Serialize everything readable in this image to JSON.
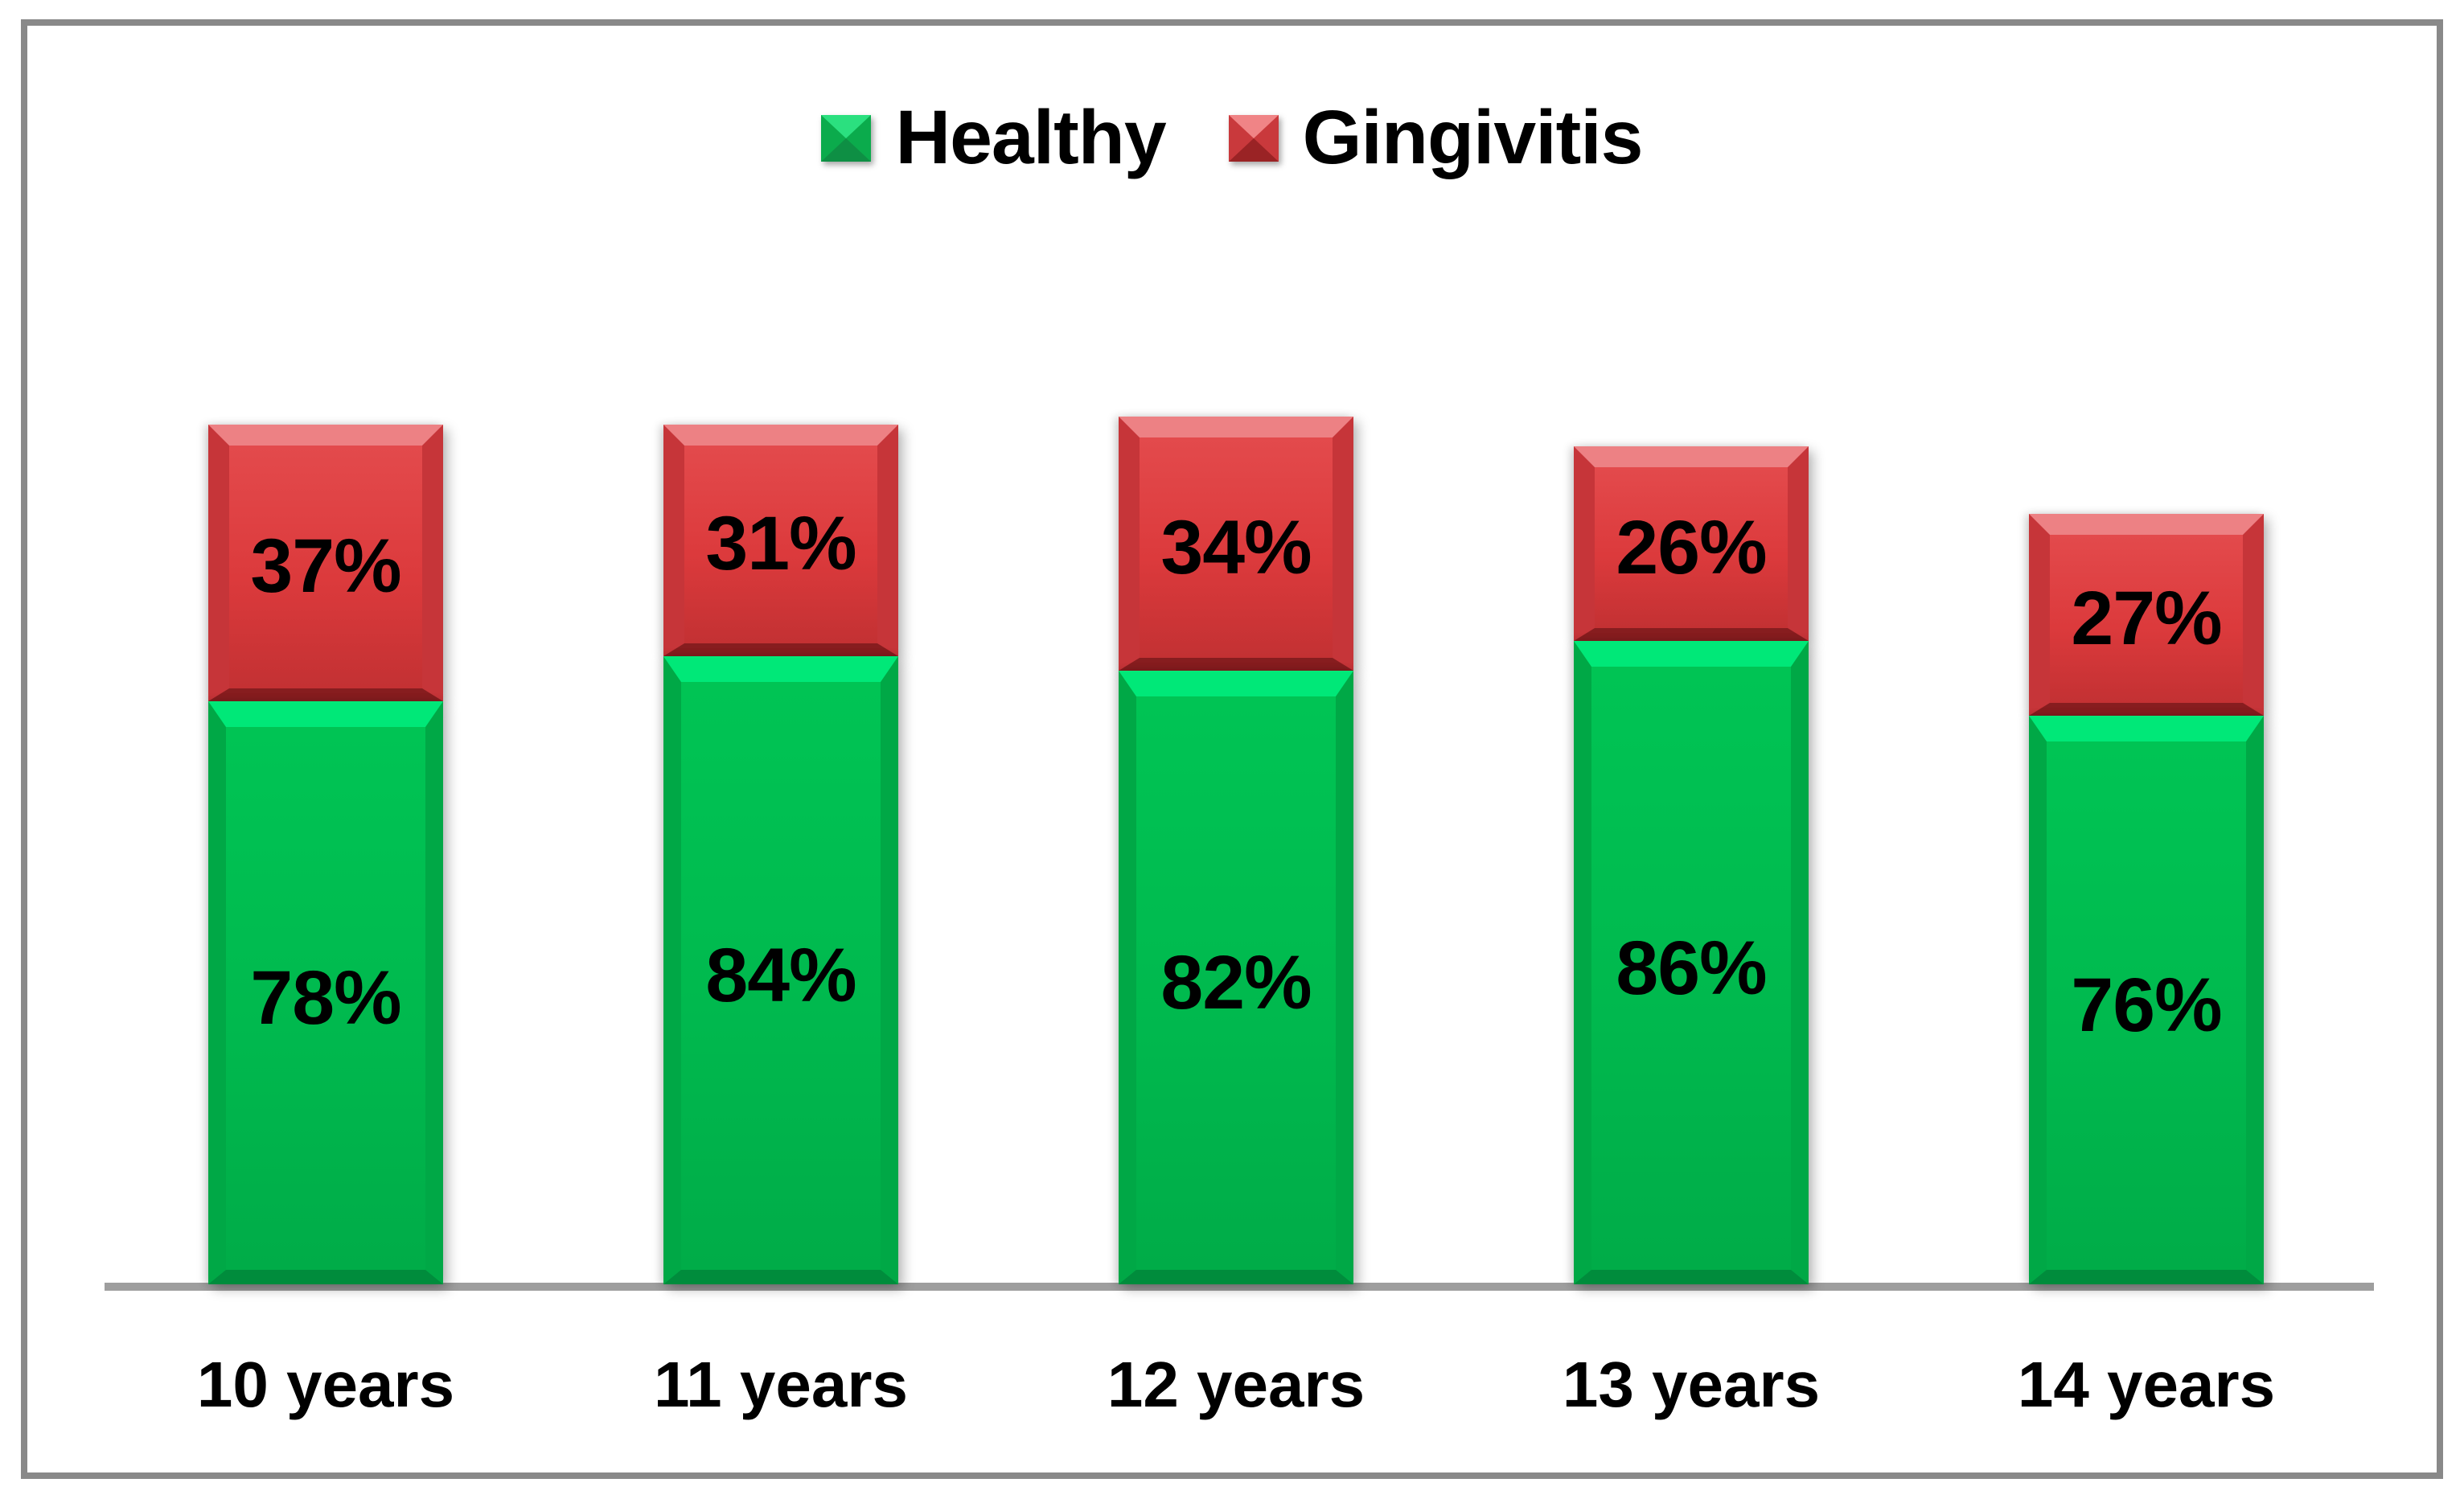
{
  "chart_data": {
    "type": "bar",
    "subtype": "stacked-column",
    "title": "",
    "xlabel": "",
    "ylabel": "",
    "categories": [
      "10 years",
      "11 years",
      "12 years",
      "13 years",
      "14 years"
    ],
    "series": [
      {
        "name": "Healthy",
        "color": "#00B94E",
        "values": [
          78,
          84,
          82,
          86,
          76
        ],
        "labels": [
          "78%",
          "84%",
          "82%",
          "86%",
          "76%"
        ]
      },
      {
        "name": "Gingivitis",
        "color": "#DC3A3C",
        "values": [
          37,
          31,
          34,
          26,
          27
        ],
        "labels": [
          "37%",
          "31%",
          "34%",
          "26%",
          "27%"
        ]
      }
    ],
    "unit": "percent",
    "grid": false,
    "y_axis_visible": false,
    "legend_position": "top-center"
  },
  "legend": {
    "items": [
      {
        "label": "Healthy",
        "color": "#00B94E"
      },
      {
        "label": "Gingivitis",
        "color": "#DC3A3C"
      }
    ]
  },
  "colors": {
    "healthy_green": "#00B94E",
    "healthy_bevel_light": "#00E878",
    "gingivitis_red": "#DC3A3C",
    "gingivitis_bevel_dark": "#871D1F",
    "axis_line": "#9E9E9E",
    "frame_border": "#898989",
    "label_text": "#000000",
    "background": "#FFFFFF"
  }
}
